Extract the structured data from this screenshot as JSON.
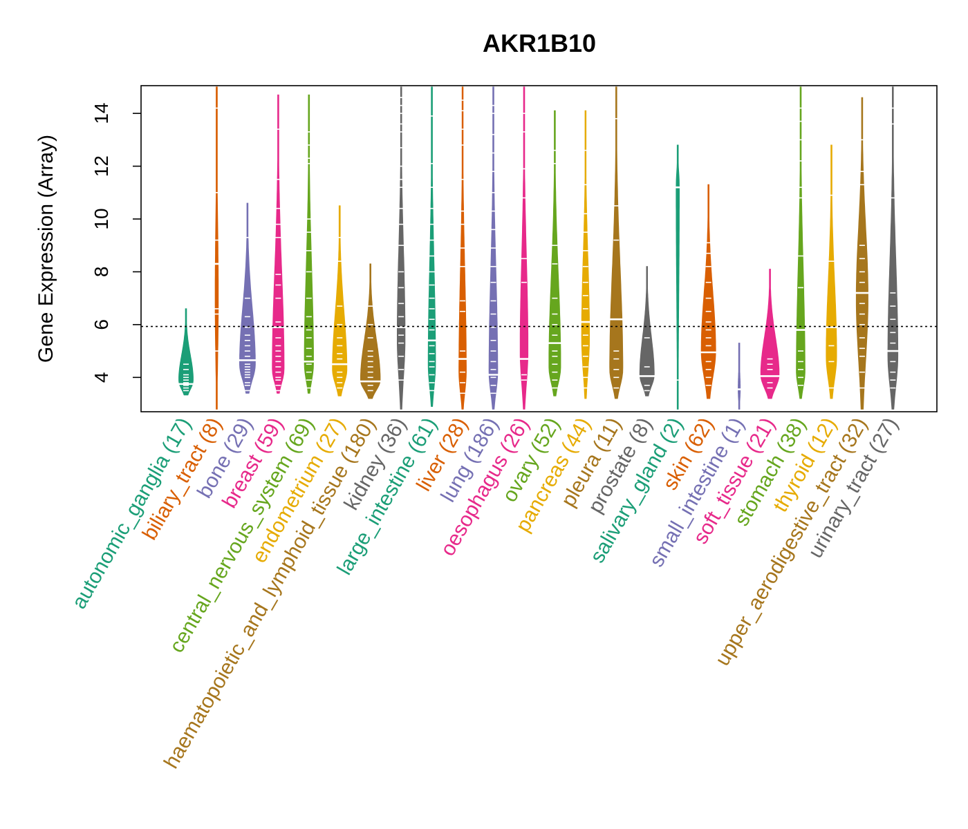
{
  "chart_data": {
    "type": "violin",
    "title": "AKR1B10",
    "xlabel": "",
    "ylabel": "Gene Expression (Array)",
    "ylim": [
      2.7,
      15.05
    ],
    "yticks": [
      4,
      6,
      8,
      10,
      12,
      14
    ],
    "reference_line": 5.93,
    "categories": [
      {
        "name": "autonomic_ganglia",
        "n": 17,
        "label": "autonomic_ganglia (17)",
        "color": "#1B9E77",
        "min": 3.3,
        "max": 6.6,
        "median": 3.75,
        "widest_at": 3.9,
        "width": 0.55,
        "marks": [
          3.3,
          3.5,
          3.6,
          3.7,
          3.75,
          3.8,
          3.9,
          4.0,
          4.1,
          4.3,
          4.5
        ]
      },
      {
        "name": "biliary_tract",
        "n": 8,
        "label": "biliary_tract (8)",
        "color": "#D95F02",
        "min": 2.8,
        "max": 15.0,
        "median": 8.3,
        "widest_at": 7.0,
        "width": 0.12,
        "marks": [
          5.0,
          6.4,
          6.6,
          8.3,
          9.2,
          11.0,
          14.2
        ]
      },
      {
        "name": "bone",
        "n": 29,
        "label": "bone (29)",
        "color": "#7570B3",
        "min": 3.4,
        "max": 10.6,
        "median": 4.65,
        "widest_at": 4.5,
        "width": 0.6,
        "marks": [
          3.5,
          3.7,
          3.8,
          4.0,
          4.1,
          4.2,
          4.3,
          4.4,
          4.5,
          4.65,
          4.8,
          5.0,
          5.2,
          5.4,
          5.6,
          5.9,
          6.3,
          7.0,
          9.3
        ]
      },
      {
        "name": "breast",
        "n": 59,
        "label": "breast (59)",
        "color": "#E7298A",
        "min": 3.4,
        "max": 14.7,
        "median": 5.9,
        "widest_at": 4.3,
        "width": 0.45,
        "marks": [
          3.5,
          3.7,
          3.9,
          4.0,
          4.2,
          4.4,
          4.6,
          4.8,
          5.0,
          5.2,
          5.5,
          5.9,
          6.1,
          7.0,
          7.5,
          7.9,
          9.3,
          9.8,
          10.4,
          11.5,
          13.4
        ]
      },
      {
        "name": "central_nervous_system",
        "n": 69,
        "label": "central_nervous_system (69)",
        "color": "#66A61E",
        "min": 3.4,
        "max": 14.7,
        "median": 4.6,
        "widest_at": 4.5,
        "width": 0.35,
        "marks": [
          3.6,
          3.9,
          4.2,
          4.5,
          4.6,
          4.8,
          5.1,
          5.5,
          5.8,
          6.3,
          7.0,
          8.0,
          8.8,
          9.5,
          10.0,
          12.1,
          12.3,
          12.8,
          13.3
        ]
      },
      {
        "name": "endometrium",
        "n": 27,
        "label": "endometrium (27)",
        "color": "#E6AB02",
        "min": 3.3,
        "max": 10.5,
        "median": 4.5,
        "widest_at": 4.3,
        "width": 0.55,
        "marks": [
          3.6,
          3.8,
          4.0,
          4.2,
          4.5,
          4.7,
          4.9,
          5.2,
          5.5,
          6.0,
          6.7,
          8.4,
          9.3
        ]
      },
      {
        "name": "haematopoietic_and_lymphoid_tissue",
        "n": 180,
        "label": "haematopoietic_and_lymphoid_tissue (180)",
        "color": "#A6761D",
        "min": 3.2,
        "max": 8.3,
        "median": 3.85,
        "widest_at": 3.9,
        "width": 0.75,
        "marks": [
          3.5,
          3.7,
          3.85,
          4.0,
          4.2,
          4.4,
          4.6,
          4.8,
          5.0,
          5.5,
          6.0,
          6.7
        ]
      },
      {
        "name": "kidney",
        "n": 36,
        "label": "kidney (36)",
        "color": "#666666",
        "min": 2.8,
        "max": 15.0,
        "median": 5.9,
        "widest_at": 5.5,
        "width": 0.3,
        "marks": [
          3.9,
          4.3,
          4.8,
          5.3,
          5.6,
          5.9,
          6.3,
          6.8,
          7.4,
          8.0,
          9.0,
          9.8,
          10.4,
          11.2,
          11.5,
          12.0,
          12.7,
          13.3,
          13.6,
          14.0,
          14.3,
          14.6
        ]
      },
      {
        "name": "large_intestine",
        "n": 61,
        "label": "large_intestine (61)",
        "color": "#1B9E77",
        "min": 2.9,
        "max": 15.0,
        "median": 5.4,
        "widest_at": 4.5,
        "width": 0.28,
        "marks": [
          3.5,
          3.8,
          4.1,
          4.4,
          4.6,
          4.9,
          5.2,
          5.4,
          5.8,
          6.2,
          6.6,
          7.0,
          7.5,
          8.0,
          8.6,
          9.2,
          9.8,
          10.4,
          11.2,
          12.1,
          13.9
        ]
      },
      {
        "name": "liver",
        "n": 28,
        "label": "liver (28)",
        "color": "#D95F02",
        "min": 2.8,
        "max": 15.0,
        "median": 4.7,
        "widest_at": 4.2,
        "width": 0.28,
        "marks": [
          3.4,
          3.8,
          4.2,
          4.7,
          5.0,
          6.5,
          6.9,
          8.2,
          8.9,
          9.8,
          10.3,
          11.5,
          12.8,
          13.4,
          14.1,
          14.5
        ]
      },
      {
        "name": "lung",
        "n": 186,
        "label": "lung (186)",
        "color": "#7570B3",
        "min": 2.8,
        "max": 15.0,
        "median": 4.1,
        "widest_at": 4.2,
        "width": 0.33,
        "marks": [
          3.4,
          3.7,
          4.0,
          4.3,
          4.6,
          5.0,
          5.4,
          5.9,
          6.4,
          6.9,
          7.6,
          8.2,
          8.9,
          9.6,
          10.3,
          11.0,
          11.8,
          12.5,
          13.2,
          14.0,
          14.3
        ]
      },
      {
        "name": "oesophagus",
        "n": 26,
        "label": "oesophagus (26)",
        "color": "#E7298A",
        "min": 2.8,
        "max": 15.0,
        "median": 4.7,
        "widest_at": 5.0,
        "width": 0.3,
        "marks": [
          3.9,
          4.1,
          4.7,
          7.6,
          8.5,
          10.8,
          11.9,
          13.3,
          14.0
        ]
      },
      {
        "name": "ovary",
        "n": 52,
        "label": "ovary (52)",
        "color": "#66A61E",
        "min": 3.3,
        "max": 14.1,
        "median": 5.3,
        "widest_at": 4.4,
        "width": 0.45,
        "marks": [
          3.6,
          3.9,
          4.2,
          4.5,
          4.8,
          5.0,
          5.3,
          5.6,
          6.0,
          6.4,
          7.0,
          8.3,
          9.0,
          12.1,
          12.6
        ]
      },
      {
        "name": "pancreas",
        "n": 44,
        "label": "pancreas (44)",
        "color": "#E6AB02",
        "min": 3.2,
        "max": 14.1,
        "median": 6.1,
        "widest_at": 5.5,
        "width": 0.3,
        "marks": [
          3.6,
          4.0,
          4.4,
          4.8,
          5.2,
          5.6,
          6.1,
          6.6,
          7.1,
          7.6,
          8.2,
          8.8,
          9.5,
          10.2,
          11.3,
          12.6
        ]
      },
      {
        "name": "pleura",
        "n": 11,
        "label": "pleura (11)",
        "color": "#A6761D",
        "min": 3.2,
        "max": 15.0,
        "median": 6.2,
        "widest_at": 4.3,
        "width": 0.5,
        "marks": [
          3.6,
          4.0,
          4.3,
          4.7,
          5.0,
          6.2,
          9.2,
          10.5,
          13.8
        ]
      },
      {
        "name": "prostate",
        "n": 8,
        "label": "prostate (8)",
        "color": "#666666",
        "min": 3.3,
        "max": 8.2,
        "median": 4.05,
        "widest_at": 4.1,
        "width": 0.55,
        "marks": [
          3.5,
          3.7,
          4.05,
          4.4,
          5.5
        ]
      },
      {
        "name": "salivary_gland",
        "n": 2,
        "label": "salivary_gland (2)",
        "color": "#1B9E77",
        "min": 2.8,
        "max": 12.8,
        "median": 11.2,
        "widest_at": 11.2,
        "width": 0.12,
        "marks": [
          3.9,
          11.2
        ]
      },
      {
        "name": "skin",
        "n": 62,
        "label": "skin (62)",
        "color": "#D95F02",
        "min": 3.2,
        "max": 11.3,
        "median": 4.95,
        "widest_at": 5.0,
        "width": 0.55,
        "marks": [
          3.7,
          4.0,
          4.3,
          4.6,
          4.95,
          5.2,
          5.5,
          5.8,
          6.1,
          6.5,
          7.0,
          7.6,
          8.2,
          8.7,
          9.1
        ]
      },
      {
        "name": "small_intestine",
        "n": 1,
        "label": "small_intestine (1)",
        "color": "#7570B3",
        "min": 2.8,
        "max": 5.3,
        "median": 3.55,
        "widest_at": 3.55,
        "width": 0.08,
        "marks": [
          3.55
        ]
      },
      {
        "name": "soft_tissue",
        "n": 21,
        "label": "soft_tissue (21)",
        "color": "#E7298A",
        "min": 3.2,
        "max": 8.1,
        "median": 4.05,
        "widest_at": 4.1,
        "width": 0.7,
        "marks": [
          3.6,
          3.8,
          4.05,
          4.3,
          4.5,
          4.7
        ]
      },
      {
        "name": "stomach",
        "n": 38,
        "label": "stomach (38)",
        "color": "#66A61E",
        "min": 3.2,
        "max": 15.0,
        "median": 5.8,
        "widest_at": 4.2,
        "width": 0.33,
        "marks": [
          3.7,
          4.0,
          4.3,
          4.6,
          5.0,
          5.8,
          7.4,
          8.6,
          10.8,
          11.2,
          12.2,
          13.0,
          13.7,
          14.2
        ]
      },
      {
        "name": "thyroid",
        "n": 12,
        "label": "thyroid (12)",
        "color": "#E6AB02",
        "min": 3.2,
        "max": 12.8,
        "median": 5.9,
        "widest_at": 4.8,
        "width": 0.4,
        "marks": [
          3.6,
          4.6,
          5.2,
          5.9,
          8.4,
          10.9
        ]
      },
      {
        "name": "upper_aerodigestive_tract",
        "n": 32,
        "label": "upper_aerodigestive_tract (32)",
        "color": "#A6761D",
        "min": 2.8,
        "max": 14.6,
        "median": 7.2,
        "widest_at": 7.0,
        "width": 0.45,
        "marks": [
          3.6,
          4.2,
          4.8,
          5.1,
          5.5,
          6.0,
          6.4,
          6.8,
          7.2,
          7.6,
          8.0,
          8.5,
          9.0,
          11.3,
          11.8,
          13.0
        ]
      },
      {
        "name": "urinary_tract",
        "n": 27,
        "label": "urinary_tract (27)",
        "color": "#666666",
        "min": 2.8,
        "max": 15.0,
        "median": 5.0,
        "widest_at": 4.8,
        "width": 0.38,
        "marks": [
          3.6,
          3.9,
          4.2,
          4.6,
          5.0,
          5.3,
          5.7,
          6.2,
          6.7,
          7.2,
          10.8,
          13.6,
          14.2
        ]
      }
    ]
  }
}
